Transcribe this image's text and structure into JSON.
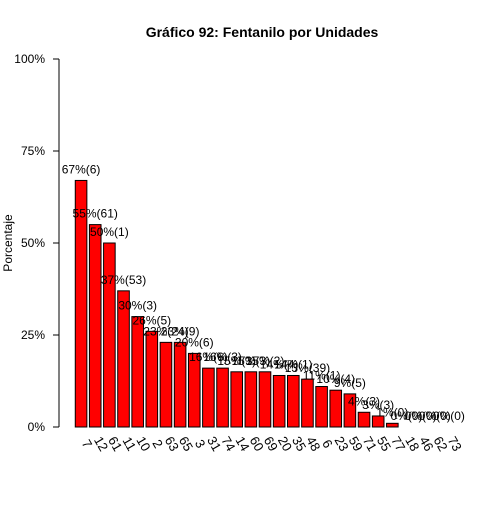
{
  "chart_data": {
    "type": "bar",
    "title": "Gráfico 92: Fentanilo por  Unidades",
    "xlabel": "",
    "ylabel": "Porcentaje",
    "ylim": [
      0,
      100
    ],
    "yticks": [
      0,
      25,
      50,
      75,
      100
    ],
    "ytick_labels": [
      "0%",
      "25%",
      "50%",
      "75%",
      "100%"
    ],
    "bar_color": "#ff0000",
    "categories": [
      "7",
      "12",
      "61",
      "11",
      "10",
      "2",
      "63",
      "65",
      "3",
      "31",
      "74",
      "14",
      "60",
      "69",
      "20",
      "35",
      "48",
      "6",
      "23",
      "59",
      "71",
      "55",
      "77",
      "18",
      "46",
      "62",
      "73"
    ],
    "values": [
      67,
      55,
      50,
      37,
      30,
      26,
      23,
      23,
      20,
      16,
      16,
      15,
      15,
      15,
      14,
      14,
      13,
      11,
      10,
      9,
      4,
      3,
      1,
      0,
      0,
      0,
      0
    ],
    "data_labels": [
      "67%(6)",
      "55%(61)",
      "50%(1)",
      "37%(53)",
      "30%(3)",
      "26%(5)",
      "23%(24)",
      "23%(9)",
      "20%(6)",
      "16%(6)",
      "16%(3)",
      "15%(3)",
      "15%(3)",
      "15%(2)",
      "14%(4)",
      "14%(1)",
      "13%(39)",
      "11%(1)",
      "10%(4)",
      "9%(5)",
      "4%(3)",
      "3%(3)",
      "1%(0)",
      "0%(0)",
      "0%(0)",
      "0%(0)",
      "0%(0)"
    ]
  }
}
